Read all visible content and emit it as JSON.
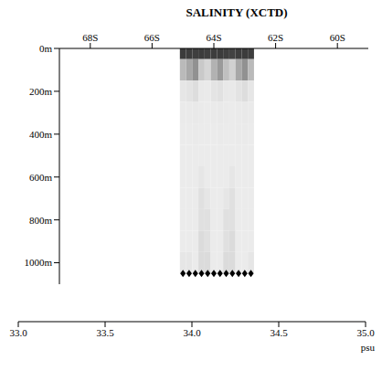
{
  "chart_data": {
    "type": "heatmap",
    "title": "SALINITY (XCTD)",
    "xlim": [
      69,
      59
    ],
    "xticks": [
      {
        "value": 68,
        "label": "68S"
      },
      {
        "value": 66,
        "label": "66S"
      },
      {
        "value": 64,
        "label": "64S"
      },
      {
        "value": 62,
        "label": "62S"
      },
      {
        "value": 60,
        "label": "60S"
      }
    ],
    "ylim": [
      0,
      1100
    ],
    "yticks": [
      {
        "value": 0,
        "label": "0m"
      },
      {
        "value": 200,
        "label": "200m"
      },
      {
        "value": 400,
        "label": "400m"
      },
      {
        "value": 600,
        "label": "600m"
      },
      {
        "value": 800,
        "label": "800m"
      },
      {
        "value": 1000,
        "label": "1000m"
      }
    ],
    "x": [
      65.0,
      64.8,
      64.6,
      64.4,
      64.2,
      64.0,
      63.8,
      63.6,
      63.4,
      63.2,
      63.0,
      62.8
    ],
    "y": [
      0,
      100,
      200,
      300,
      400,
      500,
      600,
      700,
      800,
      900,
      1000
    ],
    "cells": [
      [
        33.85,
        33.82,
        33.8,
        33.84,
        33.88,
        33.86,
        33.83,
        33.8,
        33.78,
        33.82,
        33.85,
        33.87
      ],
      [
        34.2,
        34.15,
        34.1,
        34.25,
        34.3,
        34.18,
        34.12,
        34.22,
        34.28,
        34.15,
        34.1,
        34.2
      ],
      [
        34.45,
        34.4,
        34.35,
        34.5,
        34.55,
        34.42,
        34.38,
        34.48,
        34.52,
        34.4,
        34.35,
        34.45
      ],
      [
        34.58,
        34.55,
        34.5,
        34.6,
        34.62,
        34.56,
        34.52,
        34.6,
        34.63,
        34.55,
        34.5,
        34.57
      ],
      [
        34.64,
        34.62,
        34.58,
        34.66,
        34.67,
        34.62,
        34.58,
        34.65,
        34.68,
        34.61,
        34.58,
        34.63
      ],
      [
        34.67,
        34.66,
        34.62,
        34.7,
        34.69,
        34.64,
        34.62,
        34.68,
        34.7,
        34.64,
        34.62,
        34.66
      ],
      [
        34.68,
        34.68,
        34.64,
        34.71,
        34.7,
        34.66,
        34.64,
        34.7,
        34.71,
        34.66,
        34.64,
        34.68
      ],
      [
        34.69,
        34.69,
        34.65,
        34.72,
        34.71,
        34.67,
        34.65,
        34.71,
        34.72,
        34.67,
        34.66,
        34.69
      ],
      [
        34.7,
        34.7,
        34.66,
        34.72,
        34.72,
        34.68,
        34.66,
        34.72,
        34.72,
        34.68,
        34.67,
        34.7
      ],
      [
        34.7,
        34.7,
        34.67,
        34.73,
        34.72,
        34.69,
        34.67,
        34.72,
        34.73,
        34.69,
        34.68,
        34.7
      ],
      [
        34.71,
        34.71,
        34.68,
        34.73,
        34.73,
        34.7,
        34.68,
        34.73,
        34.73,
        34.7,
        34.69,
        34.71
      ]
    ],
    "colorbar": {
      "label": "psu",
      "range": [
        33.0,
        35.0
      ],
      "ticks": [
        {
          "value": 33.0,
          "label": "33.0"
        },
        {
          "value": 33.5,
          "label": "33.5"
        },
        {
          "value": 34.0,
          "label": "34.0"
        },
        {
          "value": 34.5,
          "label": "34.5"
        },
        {
          "value": 35.0,
          "label": "35.0"
        }
      ]
    }
  }
}
